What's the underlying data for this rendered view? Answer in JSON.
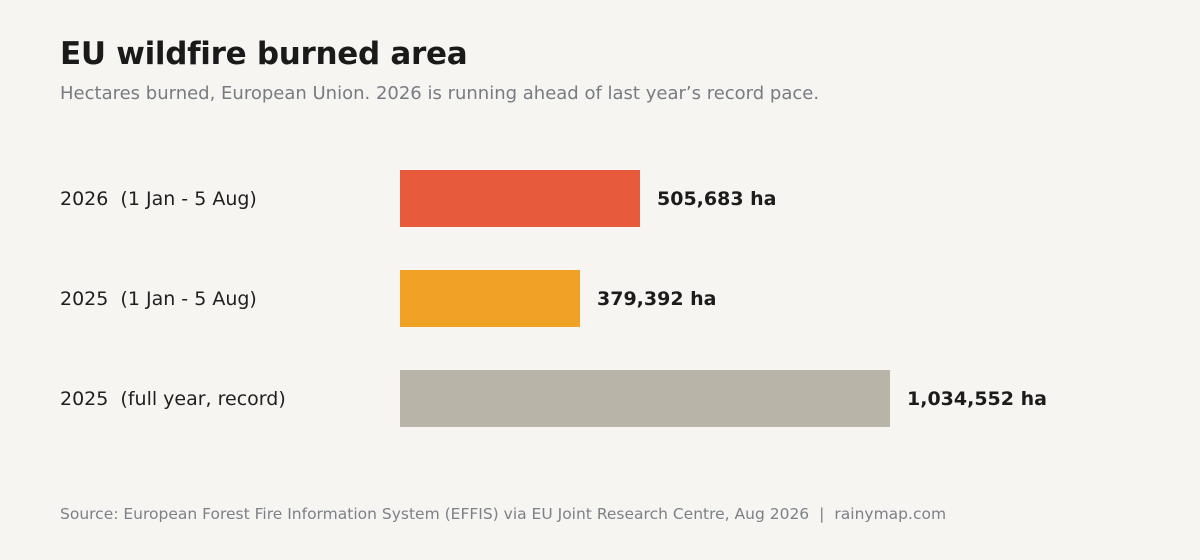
{
  "header": {
    "title": "EU wildfire burned area",
    "subtitle": "Hectares burned, European Union. 2026 is running ahead of last year’s record pace."
  },
  "chart_data": {
    "type": "bar",
    "orientation": "horizontal",
    "title": "EU wildfire burned area",
    "subtitle": "Hectares burned, European Union. 2026 is running ahead of last year’s record pace.",
    "categories": [
      "2026  (1 Jan - 5 Aug)",
      "2025  (1 Jan - 5 Aug)",
      "2025  (full year, record)"
    ],
    "values": [
      505683,
      379392,
      1034552
    ],
    "value_labels": [
      "505,683 ha",
      "379,392 ha",
      "1,034,552 ha"
    ],
    "colors": [
      "#e85a3c",
      "#f0a226",
      "#b8b5a8"
    ],
    "xlim": [
      0,
      1034552
    ],
    "grid": false,
    "legend": "none"
  },
  "footer": {
    "source": "Source: European Forest Fire Information System (EFFIS) via EU Joint Research Centre, Aug 2026",
    "separator": "|",
    "site": "rainymap.com"
  }
}
